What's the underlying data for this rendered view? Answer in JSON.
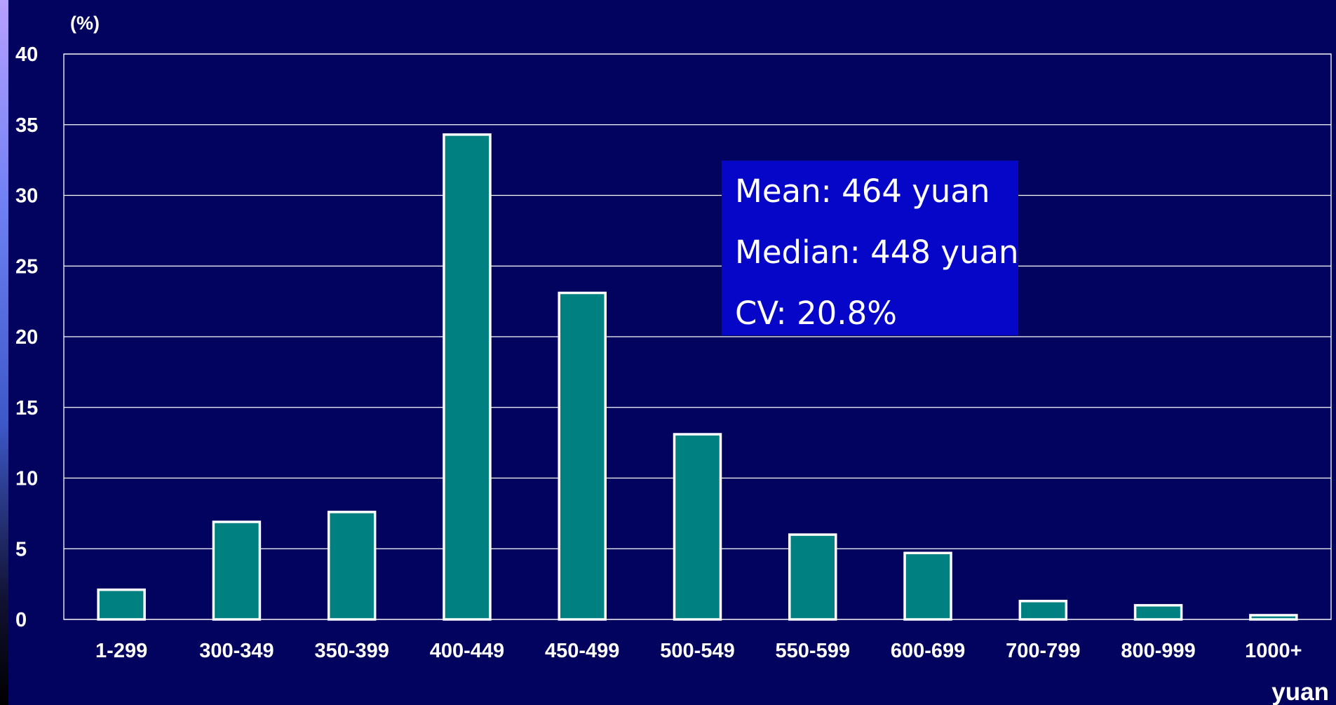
{
  "chart_data": {
    "type": "bar",
    "title": "",
    "xlabel": "yuan",
    "ylabel": "(%)",
    "ylim": [
      0,
      40
    ],
    "yticks": [
      0,
      5,
      10,
      15,
      20,
      25,
      30,
      35,
      40
    ],
    "grid": true,
    "categories": [
      "1-299",
      "300-349",
      "350-399",
      "400-449",
      "450-499",
      "500-549",
      "550-599",
      "600-699",
      "700-799",
      "800-999",
      "1000+"
    ],
    "values": [
      2.1,
      6.9,
      7.6,
      34.3,
      23.1,
      13.1,
      6.0,
      4.7,
      1.3,
      1.0,
      0.3
    ],
    "annotations": [
      "Mean: 464 yuan",
      "Median: 448 yuan",
      "CV: 20.8%"
    ]
  },
  "colors": {
    "background": "#02025f",
    "bar_fill": "#008080",
    "bar_outline": "#ffffff",
    "grid": "#ffffff",
    "annotation_box": "#0606c8",
    "text": "#ffffff"
  }
}
